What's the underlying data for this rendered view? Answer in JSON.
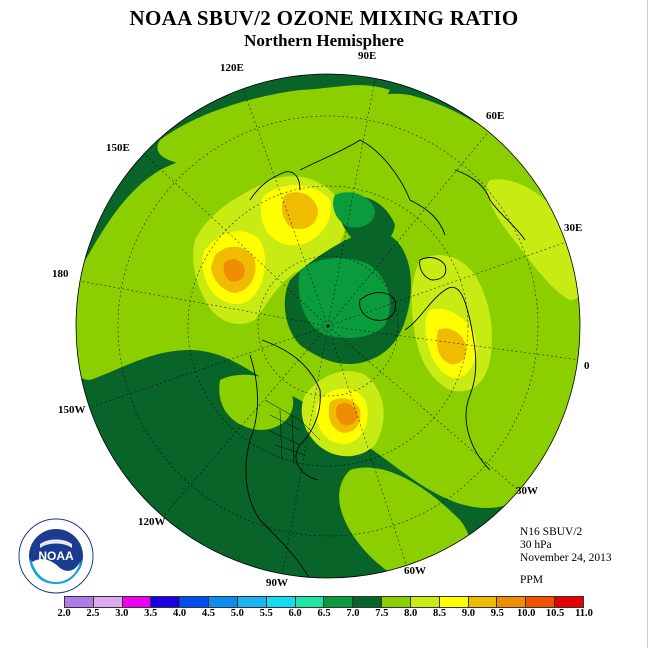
{
  "header": {
    "title": "NOAA SBUV/2 OZONE MIXING RATIO",
    "subtitle": "Northern Hemisphere"
  },
  "longitude_labels": {
    "lon_120e": "120E",
    "lon_90e": "90E",
    "lon_60e": "60E",
    "lon_150e": "150E",
    "lon_30e": "30E",
    "lon_180": "180",
    "lon_0": "0",
    "lon_150w": "150W",
    "lon_30w": "30W",
    "lon_120w": "120W",
    "lon_60w": "60W",
    "lon_90w": "90W"
  },
  "info": {
    "instrument": "N16 SBUV/2",
    "level": "30 hPa",
    "date": "November 24, 2013",
    "units": "PPM"
  },
  "legend": {
    "ticks": [
      "2.0",
      "2.5",
      "3.0",
      "3.5",
      "4.0",
      "4.5",
      "5.0",
      "5.5",
      "6.0",
      "6.5",
      "7.0",
      "7.5",
      "8.0",
      "8.5",
      "9.0",
      "9.5",
      "10.0",
      "10.5",
      "11.0"
    ],
    "colors": [
      "#b07ae8",
      "#dcaaf0",
      "#f000f0",
      "#1a00e6",
      "#0050f0",
      "#0a8cf0",
      "#1ab4f0",
      "#14dcf0",
      "#1ee6a0",
      "#0a9b3c",
      "#086428",
      "#8ccf00",
      "#c8eb14",
      "#ffff00",
      "#f0bb00",
      "#f08c00",
      "#f05000",
      "#e60000",
      "#8b5a3c"
    ]
  },
  "map_field": {
    "background_color": "#086428",
    "levels": [
      "7.0-7.5",
      "7.5-8.0",
      "8.0-8.5",
      "8.5-9.0",
      "9.0-9.5",
      "9.5-10.0"
    ]
  },
  "logo": {
    "text": "NOAA",
    "ring_text": "NATIONAL OCEANIC AND ATMOSPHERIC ADMINISTRATION U.S. DEPARTMENT OF COMMERCE"
  }
}
